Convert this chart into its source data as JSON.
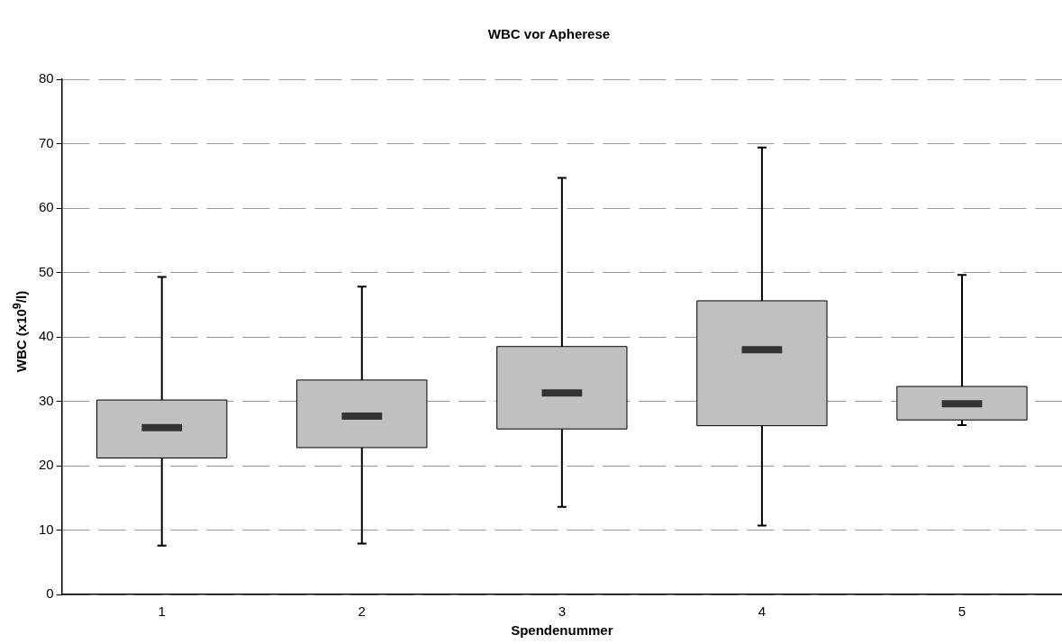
{
  "chart_data": {
    "type": "box",
    "title": "WBC vor Apherese",
    "xlabel": "Spendenummer",
    "ylabel": "WBC (x10$^{9}$/l)",
    "categories": [
      "1",
      "2",
      "3",
      "4",
      "5"
    ],
    "color": "#c0c0c0",
    "boxes": [
      {
        "low": 7.6,
        "q1": 21.2,
        "median": 25.9,
        "q3": 30.2,
        "high": 49.3
      },
      {
        "low": 7.9,
        "q1": 22.8,
        "median": 27.7,
        "q3": 33.3,
        "high": 47.8
      },
      {
        "low": 13.6,
        "q1": 25.7,
        "median": 31.3,
        "q3": 38.5,
        "high": 64.7
      },
      {
        "low": 10.7,
        "q1": 26.2,
        "median": 38.0,
        "q3": 45.6,
        "high": 69.4
      },
      {
        "low": 26.3,
        "q1": 27.1,
        "median": 29.6,
        "q3": 32.3,
        "high": 49.6
      }
    ],
    "ylim": [
      0,
      80
    ],
    "yticks": [
      0,
      10,
      20,
      30,
      40,
      50,
      60,
      70,
      80
    ],
    "grid": "y",
    "legend": false
  }
}
